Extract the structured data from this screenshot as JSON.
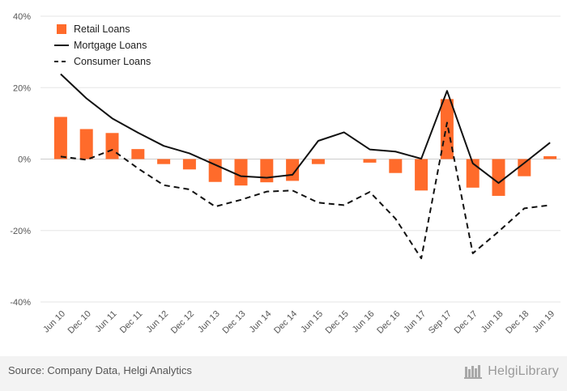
{
  "chart_data": {
    "type": "bar",
    "title": "",
    "xlabel": "",
    "ylabel": "",
    "ylim": [
      -40,
      40
    ],
    "y_ticks": [
      "40%",
      "20%",
      "0%",
      "-20%",
      "-40%"
    ],
    "y_tick_values": [
      40,
      20,
      0,
      -20,
      -40
    ],
    "categories": [
      "Jun 10",
      "Dec 10",
      "Jun 11",
      "Dec 11",
      "Jun 12",
      "Dec 12",
      "Jun 13",
      "Dec 13",
      "Jun 14",
      "Dec 14",
      "Jun 15",
      "Dec 15",
      "Jun 16",
      "Dec 16",
      "Jun 17",
      "Sep 17",
      "Dec 17",
      "Jun 18",
      "Dec 18",
      "Jun 19"
    ],
    "series": [
      {
        "name": "Retail Loans",
        "type": "bar",
        "color": "#ff6b2b",
        "values": [
          11.8,
          8.4,
          7.3,
          2.8,
          -1.4,
          -2.9,
          -6.4,
          -7.4,
          -6.5,
          -6.1,
          -1.4,
          0,
          -1.0,
          -3.9,
          -8.8,
          16.8,
          -8.0,
          -10.3,
          -4.8,
          0.8
        ]
      },
      {
        "name": "Mortgage Loans",
        "type": "line",
        "style": "solid",
        "color": "#111111",
        "values": [
          23.8,
          17.0,
          11.4,
          7.4,
          3.7,
          1.6,
          -1.6,
          -4.8,
          -5.2,
          -4.4,
          5.1,
          7.5,
          2.7,
          2.1,
          0.1,
          19.1,
          -1.2,
          -6.7,
          -1.1,
          4.6
        ]
      },
      {
        "name": "Consumer Loans",
        "type": "line",
        "style": "dashed",
        "color": "#111111",
        "values": [
          0.7,
          -0.2,
          2.6,
          -2.6,
          -7.3,
          -8.5,
          -13.3,
          -11.4,
          -9.1,
          -8.8,
          -12.2,
          -12.9,
          -9.2,
          -16.7,
          -27.8,
          10.2,
          -26.4,
          -20.3,
          -13.8,
          -12.9
        ]
      }
    ],
    "legend": "top-left",
    "grid": true
  },
  "footer": {
    "source": "Source: Company Data, Helgi Analytics",
    "brand": "HelgiLibrary"
  }
}
